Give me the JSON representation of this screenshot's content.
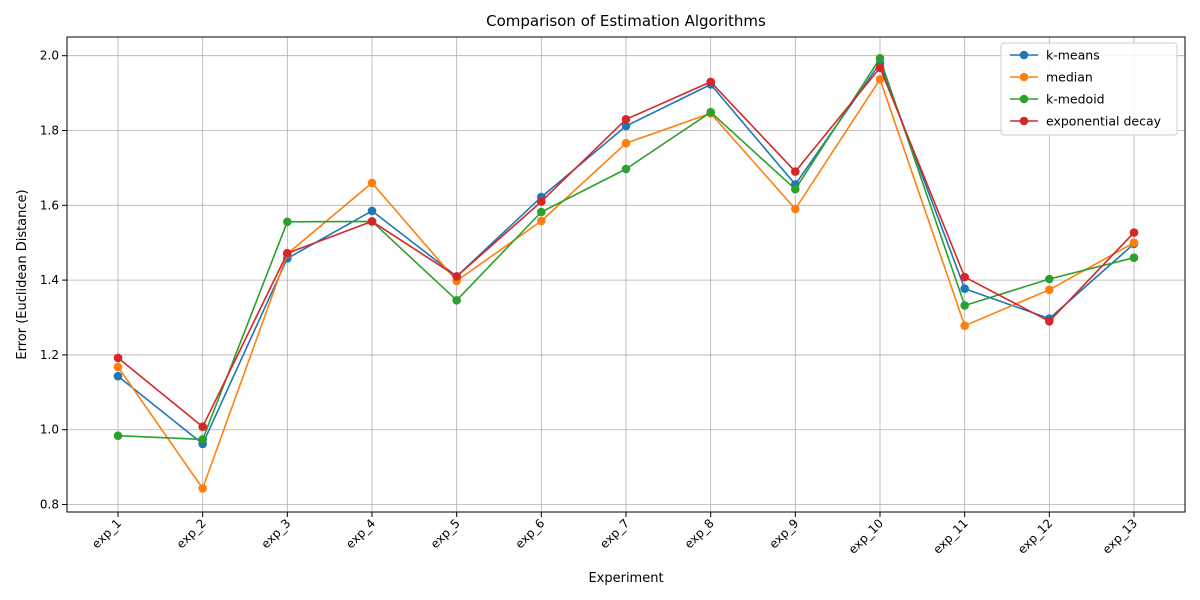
{
  "chart_data": {
    "type": "line",
    "title": "Comparison of Estimation Algorithms",
    "xlabel": "Experiment",
    "ylabel": "Error (Euclidean Distance)",
    "categories": [
      "exp_1",
      "exp_2",
      "exp_3",
      "exp_4",
      "exp_5",
      "exp_6",
      "exp_7",
      "exp_8",
      "exp_9",
      "exp_10",
      "exp_11",
      "exp_12",
      "exp_13"
    ],
    "ylim": [
      0.78,
      2.05
    ],
    "yticks": [
      "0.8",
      "1.0",
      "1.2",
      "1.4",
      "1.6",
      "1.8",
      "2.0"
    ],
    "grid": true,
    "legend_position": "top-right",
    "series": [
      {
        "name": "k-means",
        "color": "#1f77b4",
        "values": [
          1.143,
          0.962,
          1.458,
          1.585,
          1.41,
          1.622,
          1.812,
          1.923,
          1.656,
          1.98,
          1.377,
          1.297,
          1.497
        ]
      },
      {
        "name": "median",
        "color": "#ff7f0e",
        "values": [
          1.168,
          0.843,
          1.47,
          1.66,
          1.398,
          1.558,
          1.766,
          1.846,
          1.59,
          1.937,
          1.278,
          1.374,
          1.5
        ]
      },
      {
        "name": "k-medoid",
        "color": "#2ca02c",
        "values": [
          0.984,
          0.974,
          1.556,
          1.557,
          1.346,
          1.582,
          1.697,
          1.849,
          1.643,
          1.993,
          1.332,
          1.403,
          1.46
        ]
      },
      {
        "name": "exponential decay",
        "color": "#d62728",
        "values": [
          1.192,
          1.008,
          1.472,
          1.557,
          1.41,
          1.61,
          1.83,
          1.93,
          1.69,
          1.968,
          1.408,
          1.29,
          1.527
        ]
      }
    ]
  }
}
